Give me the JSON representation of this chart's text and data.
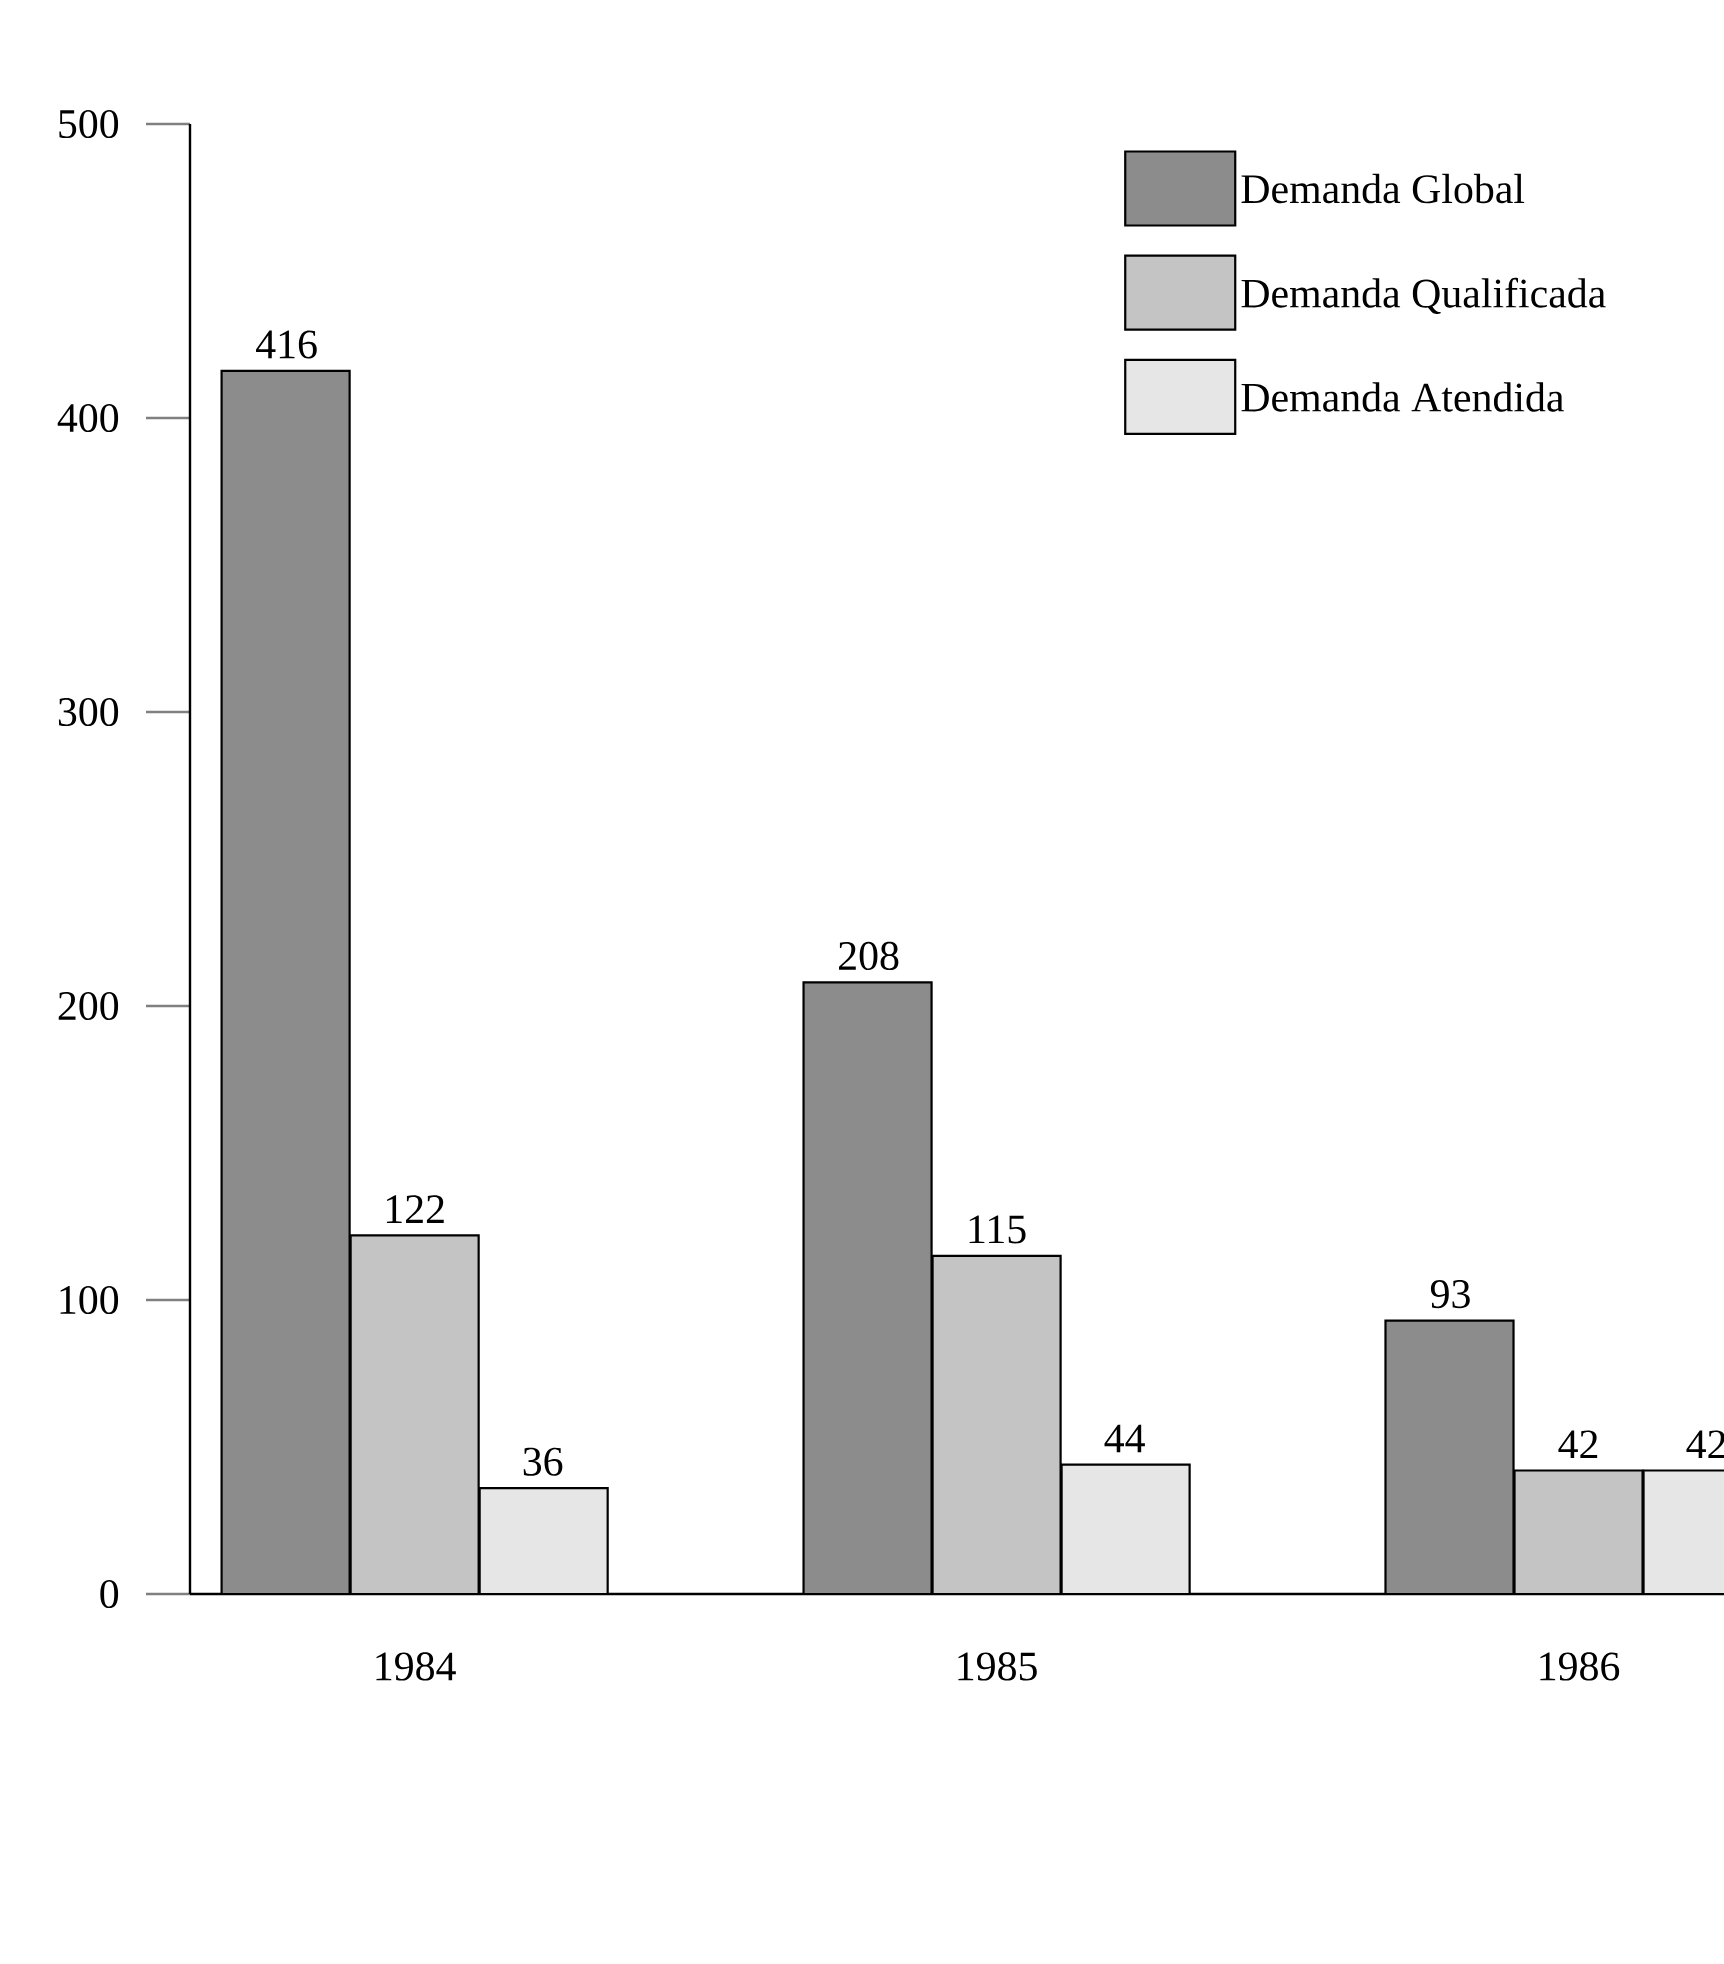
{
  "chart_data": {
    "type": "bar",
    "categories": [
      "1984",
      "1985",
      "1986"
    ],
    "series": [
      {
        "name": "Demanda Global",
        "color": "#8c8c8c",
        "values": [
          416,
          208,
          93
        ]
      },
      {
        "name": "Demanda Qualificada",
        "color": "#c4c4c4",
        "values": [
          122,
          115,
          42
        ]
      },
      {
        "name": "Demanda Atendida",
        "color": "#e6e6e6",
        "values": [
          36,
          44,
          42
        ]
      }
    ],
    "ylim": [
      0,
      500
    ],
    "yticks": [
      0,
      100,
      200,
      300,
      400,
      500
    ],
    "data_labels": true,
    "legend": "top right",
    "grid": false
  }
}
